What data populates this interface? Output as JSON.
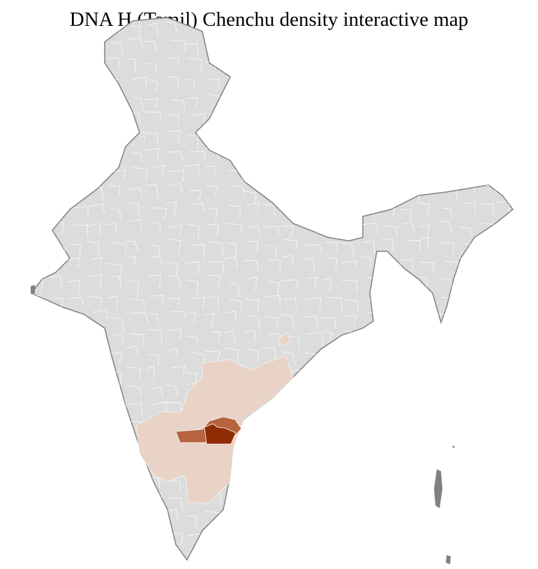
{
  "title": "DNA H (Tamil) Chenchu density interactive map",
  "colors": {
    "no_data": "#dcdcdc",
    "border": "#808080",
    "district_border": "#ffffff",
    "low": "#e8d3c6",
    "medium": "#b5643f",
    "high": "#8f2c04"
  }
}
